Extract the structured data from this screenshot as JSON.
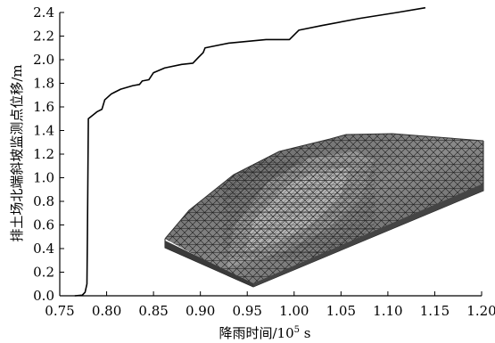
{
  "chart_data": {
    "type": "line",
    "xlabel": "降雨时间/10⁵ s",
    "xlabel_main": "降雨时间/10",
    "xlabel_exp": "5",
    "xlabel_unit": " s",
    "ylabel": "排土场北端斜坡监测点位移/m",
    "xlim": [
      0.75,
      1.2
    ],
    "ylim": [
      0.0,
      2.4
    ],
    "x_ticks": [
      0.75,
      0.8,
      0.85,
      0.9,
      0.95,
      1.0,
      1.05,
      1.1,
      1.15,
      1.2
    ],
    "x_tick_labels": [
      "0.75",
      "0.80",
      "0.85",
      "0.90",
      "0.95",
      "1.00",
      "1.05",
      "1.10",
      "1.15",
      "1.20"
    ],
    "y_ticks": [
      0.0,
      0.2,
      0.4,
      0.6,
      0.8,
      1.0,
      1.2,
      1.4,
      1.6,
      1.8,
      2.0,
      2.2,
      2.4
    ],
    "y_tick_labels": [
      "0.0",
      "0.2",
      "0.4",
      "0.6",
      "0.8",
      "1.0",
      "1.2",
      "1.4",
      "1.6",
      "1.8",
      "2.0",
      "2.2",
      "2.4"
    ],
    "grid": false,
    "line_color": "#000000",
    "mesh_inset": "finite-element-mesh-of-dump-slope",
    "series": [
      {
        "values_xy": [
          [
            0.766,
            0.0
          ],
          [
            0.774,
            0.005
          ],
          [
            0.777,
            0.03
          ],
          [
            0.779,
            0.1
          ],
          [
            0.7795,
            0.5
          ],
          [
            0.78,
            1.0
          ],
          [
            0.7805,
            1.5
          ],
          [
            0.79,
            1.56
          ],
          [
            0.795,
            1.58
          ],
          [
            0.798,
            1.66
          ],
          [
            0.805,
            1.71
          ],
          [
            0.815,
            1.75
          ],
          [
            0.828,
            1.78
          ],
          [
            0.835,
            1.79
          ],
          [
            0.838,
            1.82
          ],
          [
            0.845,
            1.83
          ],
          [
            0.85,
            1.89
          ],
          [
            0.862,
            1.93
          ],
          [
            0.88,
            1.96
          ],
          [
            0.892,
            1.97
          ],
          [
            0.898,
            2.02
          ],
          [
            0.903,
            2.06
          ],
          [
            0.905,
            2.1
          ],
          [
            0.93,
            2.14
          ],
          [
            0.97,
            2.17
          ],
          [
            0.995,
            2.17
          ],
          [
            1.005,
            2.25
          ],
          [
            1.03,
            2.29
          ],
          [
            1.07,
            2.35
          ],
          [
            1.11,
            2.4
          ],
          [
            1.14,
            2.44
          ]
        ]
      }
    ]
  }
}
